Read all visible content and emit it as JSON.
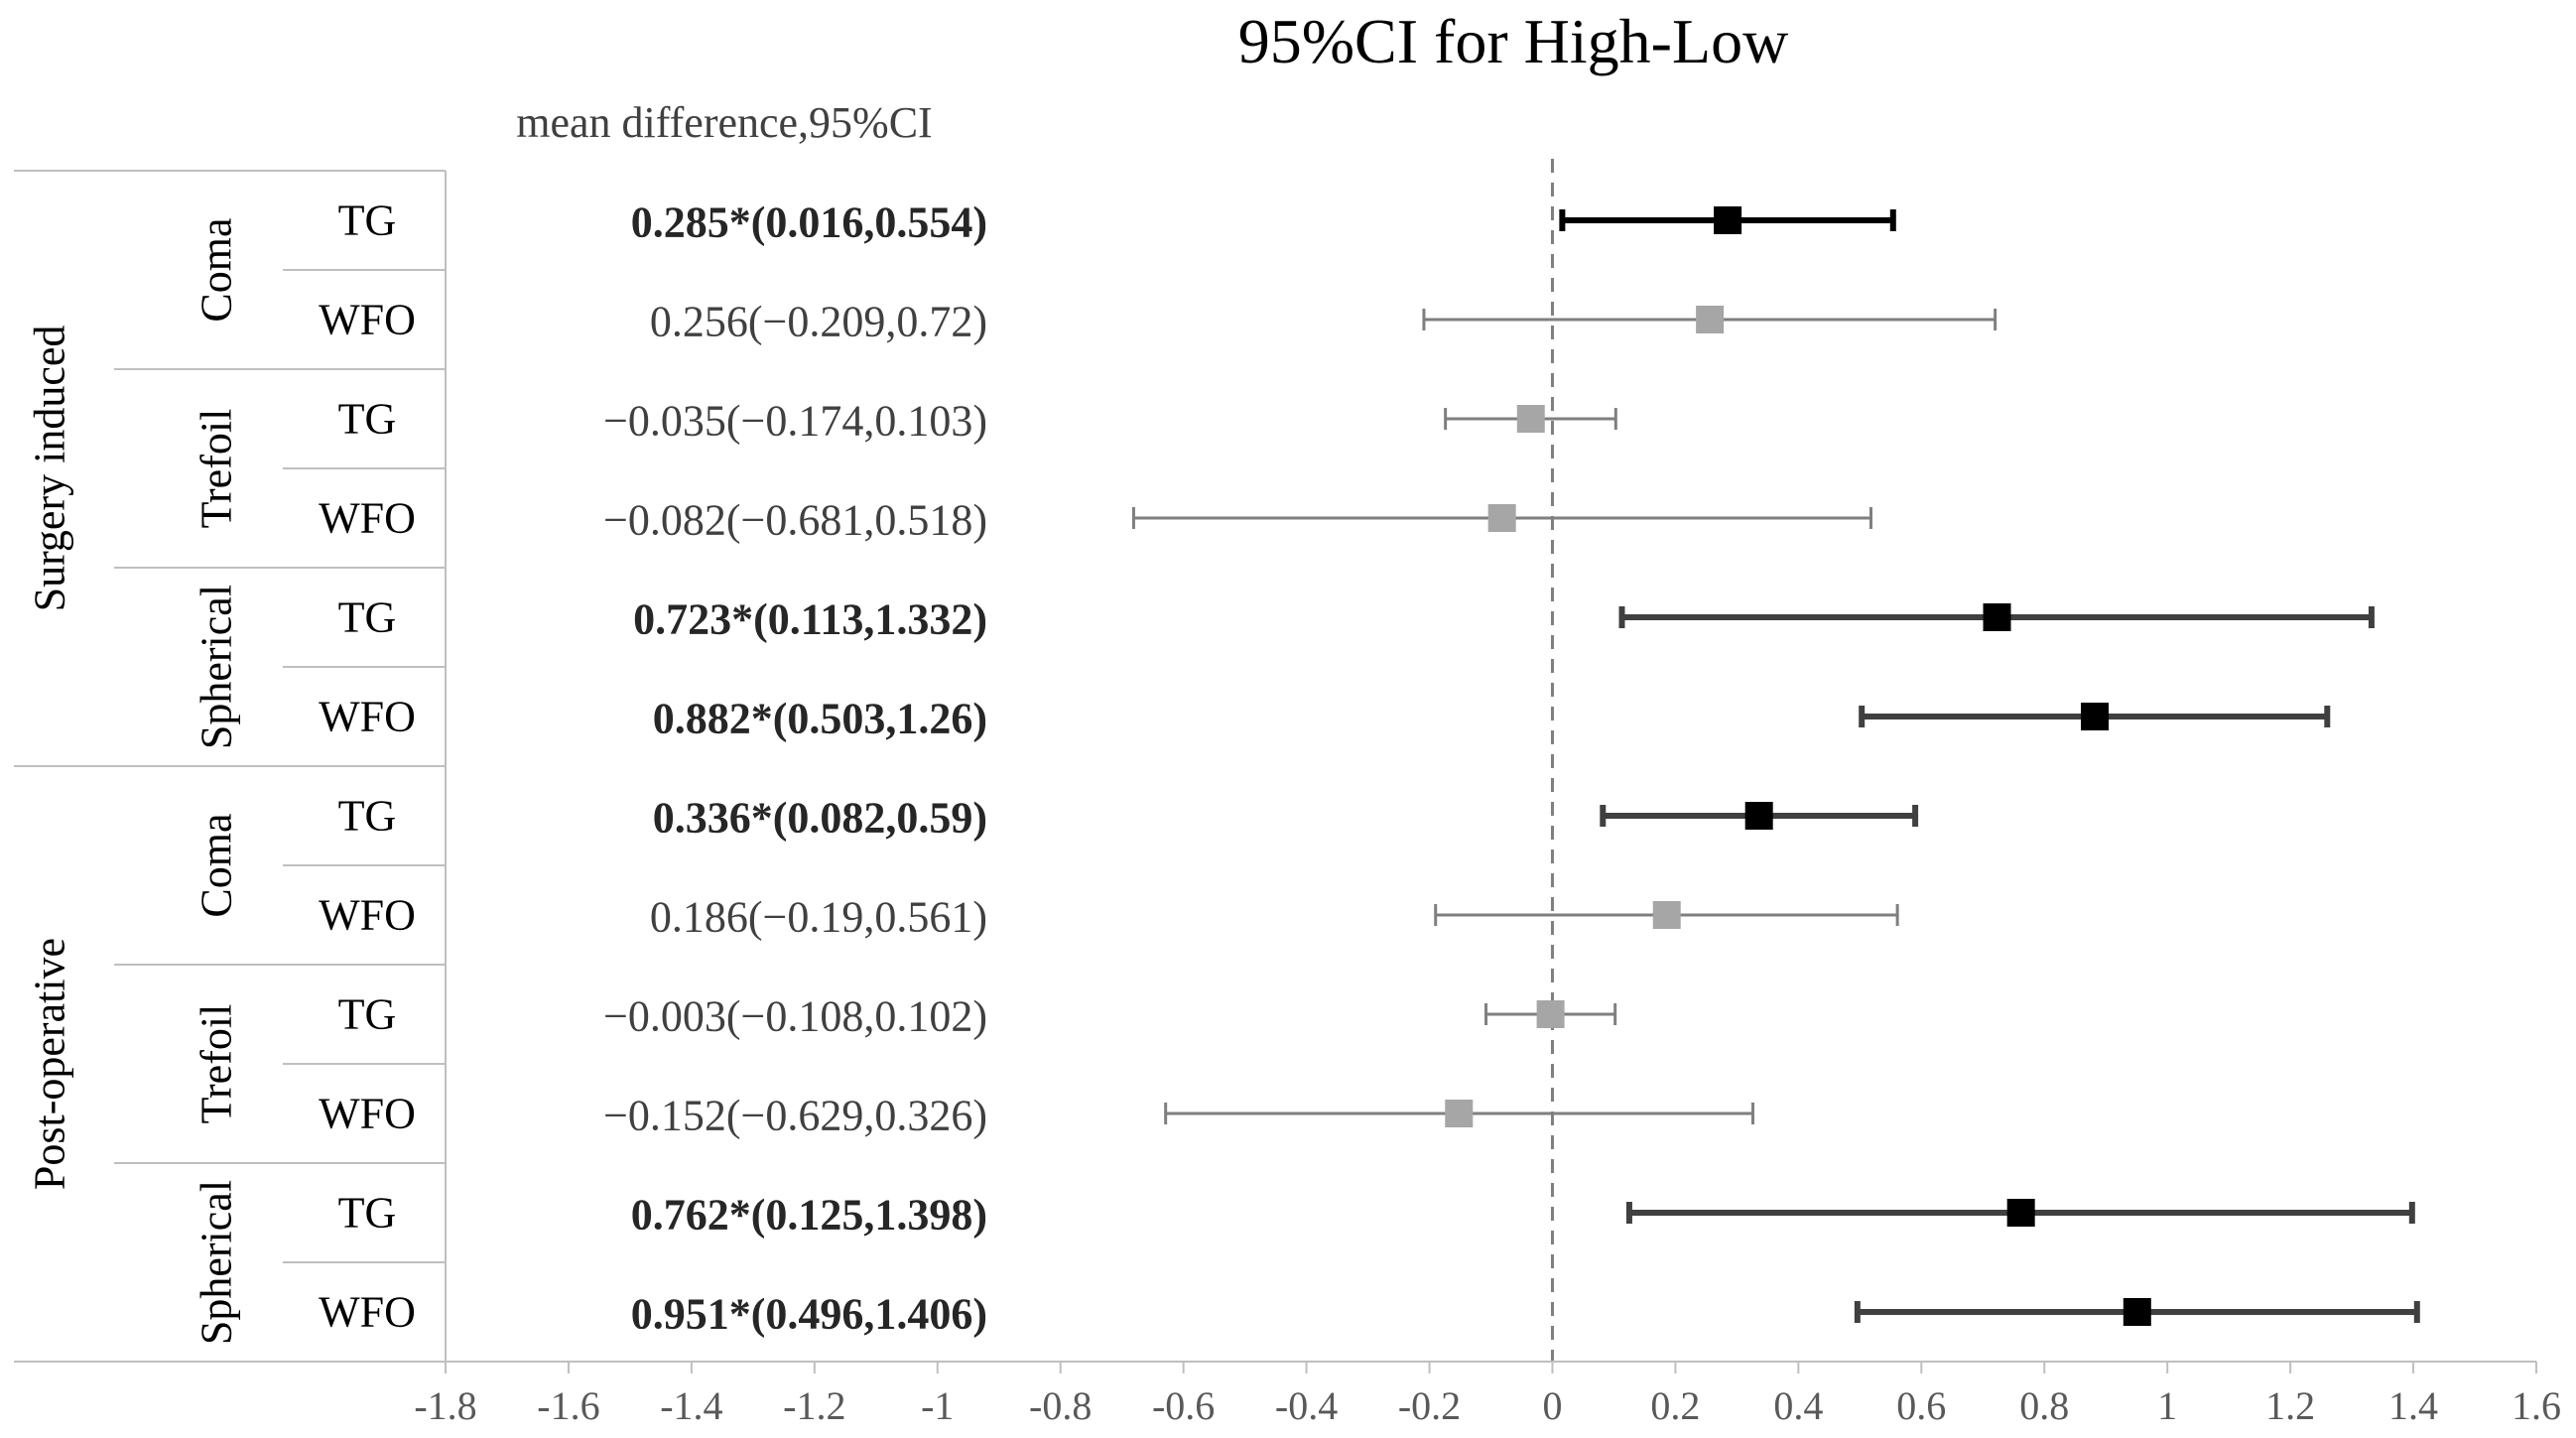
{
  "chart_data": {
    "type": "forest",
    "title": "95%CI for  High-Low",
    "column_header": "mean difference,95%CI",
    "reference_line": 0,
    "xlim": [
      -1.8,
      1.6
    ],
    "xticks": [
      "-1.8",
      "-1.6",
      "-1.4",
      "-1.2",
      "-1",
      "-0.8",
      "-0.6",
      "-0.4",
      "-0.2",
      "0",
      "0.2",
      "0.4",
      "0.6",
      "0.8",
      "1",
      "1.2",
      "1.4",
      "1.6"
    ],
    "tick_values": [
      -1.8,
      -1.6,
      -1.4,
      -1.2,
      -1,
      -0.8,
      -0.6,
      -0.4,
      -0.2,
      0,
      0.2,
      0.4,
      0.6,
      0.8,
      1,
      1.2,
      1.4,
      1.6
    ],
    "groups": [
      "Surgery induced",
      "Post-operative"
    ],
    "subgroups": [
      {
        "label": "Coma",
        "group": 0
      },
      {
        "label": "Trefoil",
        "group": 0
      },
      {
        "label": "Spherical",
        "group": 0
      },
      {
        "label": "Coma",
        "group": 1
      },
      {
        "label": "Trefoil",
        "group": 1
      },
      {
        "label": "Spherical",
        "group": 1
      }
    ],
    "rows": [
      {
        "sub": 0,
        "method": "TG",
        "label": "0.285*(0.016,0.554)",
        "mean": 0.285,
        "lo": 0.016,
        "hi": 0.554,
        "significant": true
      },
      {
        "sub": 0,
        "method": "WFO",
        "label": "0.256(−0.209,0.72)",
        "mean": 0.256,
        "lo": -0.209,
        "hi": 0.72,
        "significant": false
      },
      {
        "sub": 1,
        "method": "TG",
        "label": "−0.035(−0.174,0.103)",
        "mean": -0.035,
        "lo": -0.174,
        "hi": 0.103,
        "significant": false
      },
      {
        "sub": 1,
        "method": "WFO",
        "label": "−0.082(−0.681,0.518)",
        "mean": -0.082,
        "lo": -0.681,
        "hi": 0.518,
        "significant": false
      },
      {
        "sub": 2,
        "method": "TG",
        "label": "0.723*(0.113,1.332)",
        "mean": 0.723,
        "lo": 0.113,
        "hi": 1.332,
        "significant": true
      },
      {
        "sub": 2,
        "method": "WFO",
        "label": "0.882*(0.503,1.26)",
        "mean": 0.882,
        "lo": 0.503,
        "hi": 1.26,
        "significant": true
      },
      {
        "sub": 3,
        "method": "TG",
        "label": "0.336*(0.082,0.59)",
        "mean": 0.336,
        "lo": 0.082,
        "hi": 0.59,
        "significant": true
      },
      {
        "sub": 3,
        "method": "WFO",
        "label": "0.186(−0.19,0.561)",
        "mean": 0.186,
        "lo": -0.19,
        "hi": 0.561,
        "significant": false
      },
      {
        "sub": 4,
        "method": "TG",
        "label": "−0.003(−0.108,0.102)",
        "mean": -0.003,
        "lo": -0.108,
        "hi": 0.102,
        "significant": false
      },
      {
        "sub": 4,
        "method": "WFO",
        "label": "−0.152(−0.629,0.326)",
        "mean": -0.152,
        "lo": -0.629,
        "hi": 0.326,
        "significant": false
      },
      {
        "sub": 5,
        "method": "TG",
        "label": "0.762*(0.125,1.398)",
        "mean": 0.762,
        "lo": 0.125,
        "hi": 1.398,
        "significant": true
      },
      {
        "sub": 5,
        "method": "WFO",
        "label": "0.951*(0.496,1.406)",
        "mean": 0.951,
        "lo": 0.496,
        "hi": 1.406,
        "significant": true
      }
    ]
  },
  "colors": {
    "significant": "#000000",
    "nonsignificant": "#a6a6a6",
    "whisker_sig": "#404040",
    "whisker_nonsig": "#7f7f7f",
    "grid_line": "#bfbfbf",
    "text": "#262626",
    "ref_line": "#7f7f7f"
  }
}
